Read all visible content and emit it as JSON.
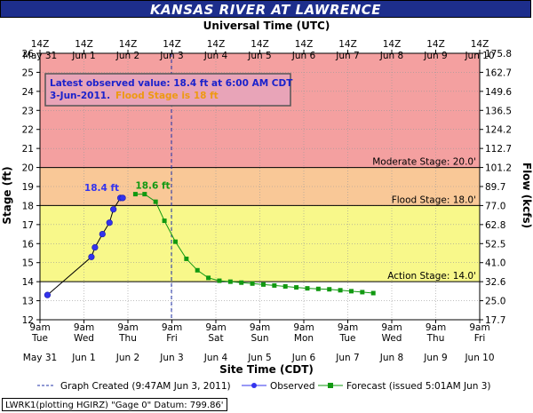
{
  "title": "KANSAS RIVER AT LAWRENCE",
  "top_axis_title": "Universal Time (UTC)",
  "bottom_axis_title": "Site Time (CDT)",
  "left_axis_title": "Stage (ft)",
  "right_axis_title": "Flow (kcfs)",
  "top_ticks": [
    [
      "14Z",
      "May 31"
    ],
    [
      "14Z",
      "Jun 1"
    ],
    [
      "14Z",
      "Jun 2"
    ],
    [
      "14Z",
      "Jun 3"
    ],
    [
      "14Z",
      "Jun 4"
    ],
    [
      "14Z",
      "Jun 5"
    ],
    [
      "14Z",
      "Jun 6"
    ],
    [
      "14Z",
      "Jun 7"
    ],
    [
      "14Z",
      "Jun 8"
    ],
    [
      "14Z",
      "Jun 9"
    ],
    [
      "14Z",
      "Jun 10"
    ]
  ],
  "bottom_ticks": [
    [
      "9am",
      "Tue",
      "May 31"
    ],
    [
      "9am",
      "Wed",
      "Jun 1"
    ],
    [
      "9am",
      "Thu",
      "Jun 2"
    ],
    [
      "9am",
      "Fri",
      "Jun 3"
    ],
    [
      "9am",
      "Sat",
      "Jun 4"
    ],
    [
      "9am",
      "Sun",
      "Jun 5"
    ],
    [
      "9am",
      "Mon",
      "Jun 6"
    ],
    [
      "9am",
      "Tue",
      "Jun 7"
    ],
    [
      "9am",
      "Wed",
      "Jun 8"
    ],
    [
      "9am",
      "Thu",
      "Jun 9"
    ],
    [
      "9am",
      "Fri",
      "Jun 10"
    ]
  ],
  "annotation": {
    "line1": "Latest observed value: 18.4 ft at 6:00 AM CDT",
    "line2_date": "3-Jun-2011.",
    "line2_flood": "Flood Stage is 18 ft"
  },
  "stage_lines": [
    {
      "label": "Moderate Stage: 20.0'",
      "value": 20
    },
    {
      "label": "Flood Stage: 18.0'",
      "value": 18
    },
    {
      "label": "Action Stage: 14.0'",
      "value": 14
    }
  ],
  "peak_labels": {
    "observed": "18.4 ft",
    "forecast": "18.6 ft"
  },
  "legend": {
    "created": "Graph Created (9:47AM Jun 3, 2011)",
    "observed": "Observed",
    "forecast": "Forecast (issued 5:01AM Jun 3)"
  },
  "footer": "LWRK1(plotting HGIRZ) \"Gage 0\" Datum: 799.86'",
  "colors": {
    "major_band": "#f4a0a0",
    "moderate_band": "#f9c897",
    "flood_band": "#f8f88a",
    "action_band": "#ffffff",
    "observed": "#3333ee",
    "forecast": "#119911",
    "title_bg": "#1d2e8c"
  },
  "chart_data": {
    "type": "line",
    "x_unit": "days since 9am Tue May 31 (CDT)",
    "xlim": [
      0,
      10
    ],
    "ylim": [
      12,
      26
    ],
    "y2_ticks": [
      "17.7",
      "25.0",
      "32.6",
      "41.0",
      "52.5",
      "62.8",
      "77.0",
      "89.7",
      "101.2",
      "112.7",
      "124.2",
      "136.5",
      "149.6",
      "162.7",
      "175.8"
    ],
    "graph_created_x": 2.99,
    "series": [
      {
        "name": "Observed",
        "x": [
          0.17,
          1.17,
          1.25,
          1.42,
          1.58,
          1.67,
          1.83,
          1.88
        ],
        "y": [
          13.3,
          15.3,
          15.8,
          16.5,
          17.1,
          17.8,
          18.4,
          18.4
        ]
      },
      {
        "name": "Forecast",
        "x": [
          2.17,
          2.38,
          2.63,
          2.83,
          3.08,
          3.33,
          3.58,
          3.83,
          4.08,
          4.33,
          4.58,
          4.83,
          5.08,
          5.33,
          5.58,
          5.83,
          6.08,
          6.33,
          6.58,
          6.83,
          7.08,
          7.33,
          7.58
        ],
        "y": [
          18.6,
          18.6,
          18.2,
          17.2,
          16.1,
          15.2,
          14.6,
          14.2,
          14.05,
          14.0,
          13.95,
          13.9,
          13.85,
          13.8,
          13.75,
          13.7,
          13.65,
          13.62,
          13.6,
          13.55,
          13.5,
          13.45,
          13.4
        ]
      }
    ]
  }
}
